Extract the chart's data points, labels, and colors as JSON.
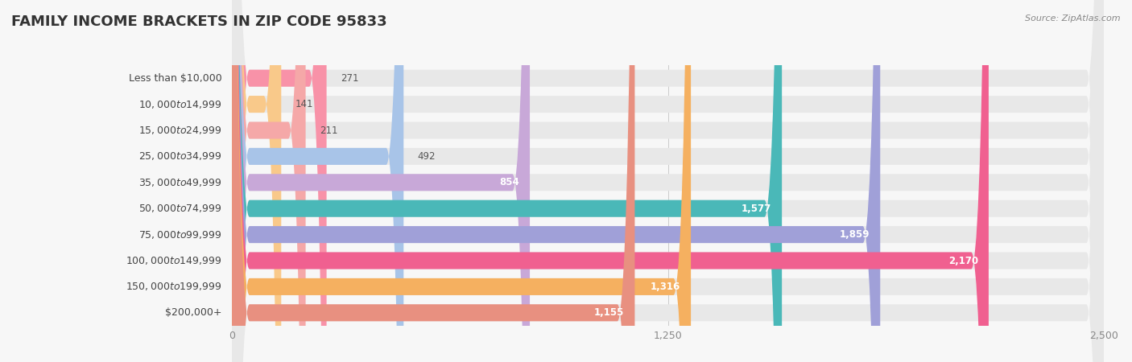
{
  "title": "FAMILY INCOME BRACKETS IN ZIP CODE 95833",
  "source": "Source: ZipAtlas.com",
  "categories": [
    "Less than $10,000",
    "$10,000 to $14,999",
    "$15,000 to $24,999",
    "$25,000 to $34,999",
    "$35,000 to $49,999",
    "$50,000 to $74,999",
    "$75,000 to $99,999",
    "$100,000 to $149,999",
    "$150,000 to $199,999",
    "$200,000+"
  ],
  "values": [
    271,
    141,
    211,
    492,
    854,
    1577,
    1859,
    2170,
    1316,
    1155
  ],
  "bar_colors": [
    "#f892a8",
    "#f9c98a",
    "#f5a8a8",
    "#a8c4e8",
    "#c8a8d8",
    "#4ab8b8",
    "#a0a0d8",
    "#f06090",
    "#f5b060",
    "#e89080"
  ],
  "background_color": "#f7f7f7",
  "bar_background_color": "#e8e8e8",
  "xlim": [
    0,
    2500
  ],
  "xticks": [
    0,
    1250,
    2500
  ],
  "title_fontsize": 13,
  "label_fontsize": 9,
  "value_fontsize": 8.5,
  "bar_height": 0.65,
  "value_threshold": 500
}
